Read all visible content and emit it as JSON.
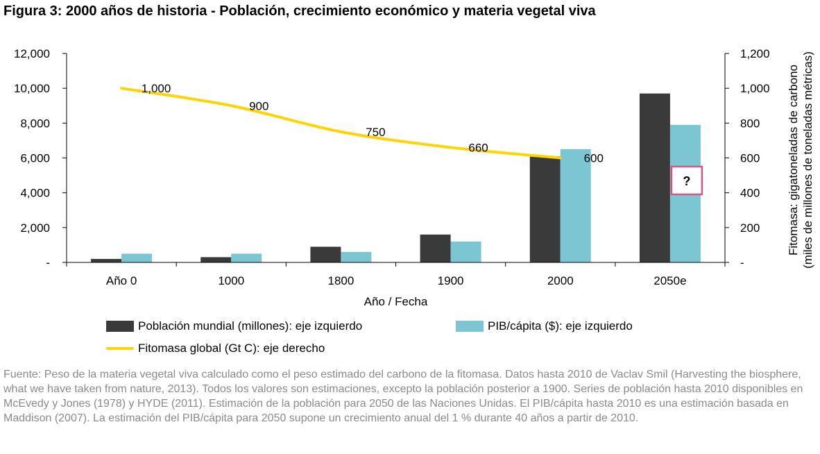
{
  "title": "Figura 3: 2000 años de historia - Población, crecimiento económico y materia vegetal viva",
  "source_text": "Fuente: Peso de la materia vegetal viva calculado como el peso estimado del carbono de la fitomasa. Datos hasta 2010 de Vaclav Smil (Harvesting the biosphere, what we have taken from nature, 2013). Todos los valores son estimaciones, excepto la población posterior a 1900. Series de población hasta 2010 disponibles en McEvedy y Jones (1978) y HYDE (2011). Estimación de la población para 2050 de las Naciones Unidas. El PIB/cápita hasta 2010 es una estimación basada en Maddison (2007). La estimación del PIB/cápita para 2050 supone un crecimiento anual del 1 % durante 40 años a partir de 2010.",
  "chart_data": {
    "type": "bar",
    "categories": [
      "Año 0",
      "1000",
      "1800",
      "1900",
      "2000",
      "2050e"
    ],
    "xlabel": "Año / Fecha",
    "ylabel": "",
    "y2label_line1": "Fitomasa: gigatoneladas de carbono",
    "y2label_line2": "(miles de millones de toneladas métricas)",
    "ylim": [
      0,
      12000
    ],
    "y2lim": [
      0,
      1200
    ],
    "yticks": [
      "-",
      "2,000",
      "4,000",
      "6,000",
      "8,000",
      "10,000",
      "12,000"
    ],
    "y2ticks": [
      "-",
      "200",
      "400",
      "600",
      "800",
      "1,000",
      "1,200"
    ],
    "grid": false,
    "legend_position": "bottom",
    "series": [
      {
        "name": "Población mundial (millones): eje izquierdo",
        "type": "bar",
        "axis": "left",
        "color": "#3a3a3a",
        "values": [
          200,
          300,
          900,
          1600,
          6100,
          9700
        ]
      },
      {
        "name": "PIB/cápita ($): eje izquierdo",
        "type": "bar",
        "axis": "left",
        "color": "#7cc6d4",
        "values": [
          500,
          500,
          600,
          1200,
          6500,
          7900
        ]
      },
      {
        "name": "Fitomasa global (Gt C): eje derecho",
        "type": "line",
        "axis": "right",
        "color": "#ffd400",
        "values": [
          1000,
          900,
          750,
          660,
          600,
          null
        ],
        "labels": [
          "1,000",
          "900",
          "750",
          "660",
          "600",
          ""
        ]
      }
    ],
    "annotation": {
      "text": "?",
      "border_color": "#d6567e"
    }
  }
}
